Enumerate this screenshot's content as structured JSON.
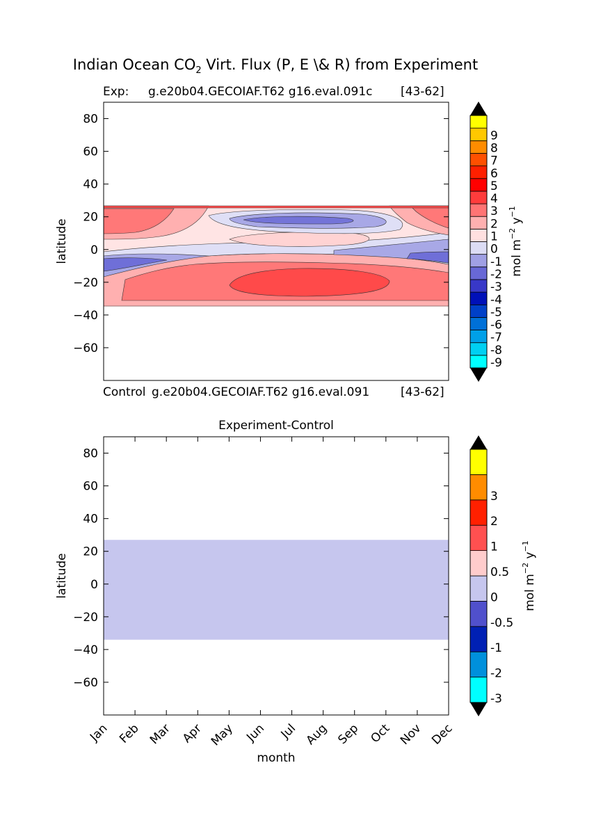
{
  "figure": {
    "title_main": "Indian Ocean CO",
    "title_sub": "2",
    "title_rest": " Virt. Flux (P, E \\& R) from Experiment"
  },
  "chart_data": [
    {
      "type": "heatmap",
      "panel": "experiment",
      "title_left": "Exp:",
      "title_center": "g.e20b04.GECOIAF.T62 g16.eval.091c",
      "title_right": "[43-62]",
      "bottom_left": "Control",
      "bottom_center": "g.e20b04.GECOIAF.T62 g16.eval.091",
      "bottom_right": "[43-62]",
      "ylabel": "latitude",
      "ylim": [
        -80,
        90
      ],
      "xlim": [
        0,
        11
      ],
      "y_ticks": [
        80,
        60,
        40,
        20,
        0,
        -20,
        -40,
        -60
      ],
      "y_tick_labels": [
        "80",
        "60",
        "40",
        "20",
        "0",
        "−20",
        "−40",
        "−60"
      ],
      "data_lat_range": [
        -34,
        27
      ],
      "note": "latitude-month contour of CO2 virtual flux, values in mol m-2 y-1",
      "regions": [
        {
          "level": "0",
          "color": "#ffe4e4",
          "desc": "background ocean band"
        },
        {
          "level": "0",
          "color": "#ffd3d3",
          "desc": "equatorial light band"
        },
        {
          "level": "-1",
          "color": "#dfdff6",
          "desc": "near-equator negative band"
        },
        {
          "level": "-2",
          "color": "#a8a8e6",
          "desc": "southern negative band"
        },
        {
          "level": "-3",
          "color": "#6f6fd8",
          "desc": "southern strong negative"
        },
        {
          "level": "1",
          "color": "#ffb0b0",
          "desc": "southern positive band"
        },
        {
          "level": "2",
          "color": "#ff7878",
          "desc": "southern stronger positive"
        },
        {
          "level": "3",
          "color": "#ff4a4a",
          "desc": "southern core max"
        },
        {
          "level": "2",
          "color": "#ff7878",
          "desc": "northern positive lobes"
        },
        {
          "level": "-2",
          "color": "#7474d8",
          "desc": "northern summer negative"
        }
      ],
      "colorbar": {
        "label_main": "mol m",
        "label_exp1": "−2",
        "label_mid": " y",
        "label_exp2": "−1",
        "levels": [
          {
            "label": "-9",
            "color": "#00ffff"
          },
          {
            "label": "-8",
            "color": "#00d0f2"
          },
          {
            "label": "-7",
            "color": "#00a0e8"
          },
          {
            "label": "-6",
            "color": "#0070d8"
          },
          {
            "label": "-5",
            "color": "#0040c8"
          },
          {
            "label": "-4",
            "color": "#0010b8"
          },
          {
            "label": "-3",
            "color": "#3838c8"
          },
          {
            "label": "-2",
            "color": "#6868d6"
          },
          {
            "label": "-1",
            "color": "#a0a0e4"
          },
          {
            "label": "0",
            "color": "#dcdcf4"
          },
          {
            "label": "1",
            "color": "#ffe0e0"
          },
          {
            "label": "2",
            "color": "#ffb0b0"
          },
          {
            "label": "3",
            "color": "#ff7474"
          },
          {
            "label": "4",
            "color": "#ff3c3c"
          },
          {
            "label": "5",
            "color": "#ff0000"
          },
          {
            "label": "6",
            "color": "#ff2000"
          },
          {
            "label": "7",
            "color": "#ff5000"
          },
          {
            "label": "8",
            "color": "#ff8c00"
          },
          {
            "label": "9",
            "color": "#ffc800"
          },
          {
            "label": "",
            "color": "#ffff00"
          }
        ]
      }
    },
    {
      "type": "heatmap",
      "panel": "difference",
      "title": "Experiment-Control",
      "xlabel": "month",
      "ylabel": "latitude",
      "ylim": [
        -80,
        90
      ],
      "xlim": [
        0,
        11
      ],
      "y_ticks": [
        80,
        60,
        40,
        20,
        0,
        -20,
        -40,
        -60
      ],
      "y_tick_labels": [
        "80",
        "60",
        "40",
        "20",
        "0",
        "−20",
        "−40",
        "−60"
      ],
      "categories": [
        "Jan",
        "Feb",
        "Mar",
        "Apr",
        "May",
        "Jun",
        "Jul",
        "Aug",
        "Sep",
        "Oct",
        "Nov",
        "Dec"
      ],
      "data_lat_range": [
        -34,
        27
      ],
      "fill_level": "-0.5 to 0",
      "fill_color": "#c6c6ee",
      "colorbar": {
        "label_main": "mol m",
        "label_exp1": "−2",
        "label_mid": " y",
        "label_exp2": "−1",
        "levels": [
          {
            "label": "-3",
            "color": "#00ffff"
          },
          {
            "label": "-2",
            "color": "#0090dc"
          },
          {
            "label": "-1",
            "color": "#0020b4"
          },
          {
            "label": "-0.5",
            "color": "#5050cc"
          },
          {
            "label": "0",
            "color": "#c6c6ee"
          },
          {
            "label": "0.5",
            "color": "#ffcccc"
          },
          {
            "label": "1",
            "color": "#ff5050"
          },
          {
            "label": "2",
            "color": "#ff2000"
          },
          {
            "label": "3",
            "color": "#ff8c00"
          },
          {
            "label": "",
            "color": "#ffff00"
          }
        ]
      }
    }
  ]
}
